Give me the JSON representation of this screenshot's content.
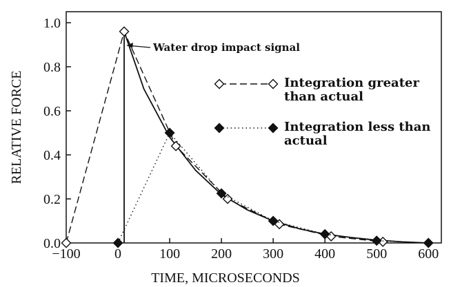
{
  "chart_data": {
    "type": "line",
    "x_label": "TIME, MICROSECONDS",
    "y_label": "RELATIVE FORCE",
    "annotation": "Water drop impact signal",
    "xlim": [
      -100,
      625
    ],
    "ylim": [
      0,
      1.05
    ],
    "xticks": [
      {
        "value": -100,
        "label": "−100"
      },
      0,
      100,
      200,
      300,
      400,
      500,
      600
    ],
    "yticks": [
      {
        "value": 0,
        "label": "0.0"
      },
      0.2,
      0.4,
      0.6,
      0.8,
      {
        "value": 1,
        "label": "1.0"
      }
    ],
    "series": [
      {
        "x": [
          12,
          12,
          50,
          100,
          150,
          200,
          250,
          300,
          350,
          400,
          450,
          500,
          550,
          600
        ],
        "values": [
          0,
          0.96,
          0.7,
          0.48,
          0.33,
          0.22,
          0.15,
          0.1,
          0.065,
          0.04,
          0.025,
          0.013,
          0.005,
          0
        ],
        "color": "#111111",
        "line": "solid",
        "marker": "none"
      },
      {
        "name": "Integration greater than actual",
        "x": [
          -100,
          12,
          112,
          212,
          312,
          412,
          512
        ],
        "values": [
          0,
          0.96,
          0.44,
          0.2,
          0.085,
          0.03,
          0.005
        ],
        "color": "#111111",
        "line": "dashed",
        "marker": "open-diamond"
      },
      {
        "name": "Integration less than actual",
        "x": [
          0,
          100,
          200,
          300,
          400,
          500,
          600
        ],
        "values": [
          0,
          0.5,
          0.225,
          0.1,
          0.04,
          0.01,
          0
        ],
        "color": "#111111",
        "line": "dotted",
        "marker": "filled-diamond"
      }
    ]
  }
}
